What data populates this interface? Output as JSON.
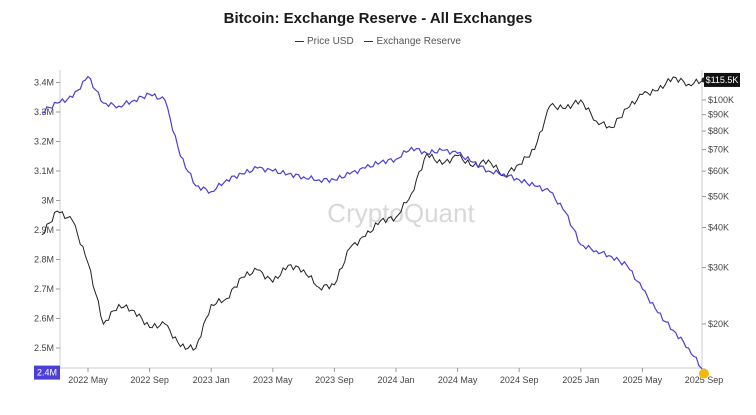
{
  "chart_data": {
    "type": "line",
    "title": "Bitcoin: Exchange Reserve - All Exchanges",
    "watermark": "CryptoQuant",
    "legend_position": "top-center",
    "grid": false,
    "colors": {
      "price": "#222222",
      "reserve": "#4b3fd6",
      "price_marker": "#f0b90b"
    },
    "x_ticks": [
      "2022 May",
      "2022 Sep",
      "2023 Jan",
      "2023 May",
      "2023 Sep",
      "2024 Jan",
      "2024 May",
      "2024 Sep",
      "2025 Jan",
      "2025 May",
      "2025 Sep"
    ],
    "y_left_ticks": [
      "3.4M",
      "3.3M",
      "3.2M",
      "3.1M",
      "3M",
      "2.9M",
      "2.8M",
      "2.7M",
      "2.6M",
      "2.5M"
    ],
    "y_right_ticks": [
      "$100K",
      "$90K",
      "$80K",
      "$70K",
      "$60K",
      "$50K",
      "$40K",
      "$30K",
      "$20K"
    ],
    "y_left_range": [
      2400000,
      3450000
    ],
    "y_right_range": [
      15000,
      125000
    ],
    "y_right_scale": "log",
    "last_labels": {
      "reserve": "2.4M",
      "price": "$115.5K"
    },
    "series": [
      {
        "name": "Price USD",
        "axis": "right",
        "x": [
          "2022-02",
          "2022-03",
          "2022-04",
          "2022-05",
          "2022-06",
          "2022-07",
          "2022-08",
          "2022-09",
          "2022-10",
          "2022-11",
          "2022-12",
          "2023-01",
          "2023-02",
          "2023-03",
          "2023-04",
          "2023-05",
          "2023-06",
          "2023-07",
          "2023-08",
          "2023-09",
          "2023-10",
          "2023-11",
          "2023-12",
          "2024-01",
          "2024-02",
          "2024-03",
          "2024-04",
          "2024-05",
          "2024-06",
          "2024-07",
          "2024-08",
          "2024-09",
          "2024-10",
          "2024-11",
          "2024-12",
          "2025-01",
          "2025-02",
          "2025-03",
          "2025-04",
          "2025-05",
          "2025-06",
          "2025-07",
          "2025-08",
          "2025-09"
        ],
        "values": [
          38000,
          45000,
          42000,
          31000,
          20000,
          23000,
          22000,
          19500,
          20000,
          17000,
          16800,
          23000,
          24000,
          28000,
          29500,
          27000,
          30500,
          29500,
          26000,
          26500,
          34500,
          37500,
          42000,
          43000,
          51000,
          68000,
          63000,
          67000,
          62000,
          65000,
          58000,
          63000,
          70000,
          96000,
          94000,
          100000,
          86000,
          82000,
          94000,
          104000,
          107000,
          118000,
          112000,
          115500
        ]
      },
      {
        "name": "Exchange Reserve",
        "axis": "left",
        "x": [
          "2022-02",
          "2022-03",
          "2022-04",
          "2022-05",
          "2022-06",
          "2022-07",
          "2022-08",
          "2022-09",
          "2022-10",
          "2022-11",
          "2022-12",
          "2023-01",
          "2023-02",
          "2023-03",
          "2023-04",
          "2023-05",
          "2023-06",
          "2023-07",
          "2023-08",
          "2023-09",
          "2023-10",
          "2023-11",
          "2023-12",
          "2024-01",
          "2024-02",
          "2024-03",
          "2024-04",
          "2024-05",
          "2024-06",
          "2024-07",
          "2024-08",
          "2024-09",
          "2024-10",
          "2024-11",
          "2024-12",
          "2025-01",
          "2025-02",
          "2025-03",
          "2025-04",
          "2025-05",
          "2025-06",
          "2025-07",
          "2025-08",
          "2025-09"
        ],
        "values": [
          3300000,
          3330000,
          3350000,
          3420000,
          3330000,
          3320000,
          3340000,
          3360000,
          3340000,
          3150000,
          3050000,
          3030000,
          3070000,
          3090000,
          3110000,
          3100000,
          3090000,
          3080000,
          3070000,
          3070000,
          3090000,
          3110000,
          3130000,
          3140000,
          3180000,
          3160000,
          3170000,
          3160000,
          3130000,
          3100000,
          3090000,
          3070000,
          3050000,
          3030000,
          2960000,
          2850000,
          2830000,
          2810000,
          2780000,
          2700000,
          2620000,
          2560000,
          2500000,
          2420000
        ]
      }
    ]
  }
}
